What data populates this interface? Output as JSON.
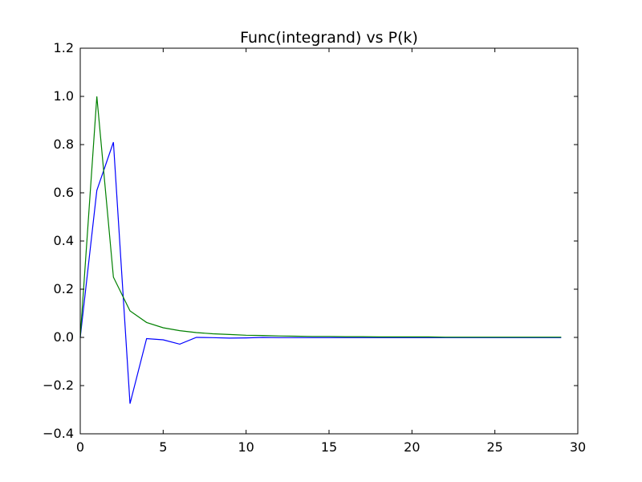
{
  "chart_data": {
    "type": "line",
    "title": "Func(integrand) vs P(k)",
    "xlabel": "",
    "ylabel": "",
    "xlim": [
      0,
      30
    ],
    "ylim": [
      -0.4,
      1.2
    ],
    "x_ticks": [
      0,
      5,
      10,
      15,
      20,
      25,
      30
    ],
    "x_tick_labels": [
      "0",
      "5",
      "10",
      "15",
      "20",
      "25",
      "30"
    ],
    "y_ticks": [
      -0.4,
      -0.2,
      0.0,
      0.2,
      0.4,
      0.6,
      0.8,
      1.0,
      1.2
    ],
    "y_tick_labels": [
      "−0.4",
      "−0.2",
      "0.0",
      "0.2",
      "0.4",
      "0.6",
      "0.8",
      "1.0",
      "1.2"
    ],
    "grid": false,
    "legend": "none",
    "series": [
      {
        "color": "#0000ff",
        "x": [
          0,
          1,
          2,
          3,
          4,
          5,
          6,
          7,
          8,
          9,
          10,
          11,
          12,
          13,
          14,
          15,
          16,
          17,
          18,
          19,
          20,
          21,
          22,
          23,
          24,
          25,
          26,
          27,
          28,
          29
        ],
        "values": [
          0.0,
          0.61,
          0.81,
          -0.275,
          -0.005,
          -0.01,
          -0.028,
          0.0,
          -0.001,
          -0.003,
          -0.002,
          0.0,
          -0.001,
          -0.001,
          -0.001,
          -0.001,
          -0.001,
          -0.001,
          -0.001,
          -0.001,
          -0.001,
          -0.001,
          -0.001,
          -0.001,
          -0.001,
          -0.001,
          -0.001,
          -0.001,
          -0.001,
          -0.001
        ]
      },
      {
        "color": "#008000",
        "x": [
          0,
          1,
          2,
          3,
          4,
          5,
          6,
          7,
          8,
          9,
          10,
          11,
          12,
          13,
          14,
          15,
          16,
          17,
          18,
          19,
          20,
          21,
          22,
          23,
          24,
          25,
          26,
          27,
          28,
          29
        ],
        "values": [
          0.0,
          1.0,
          0.25,
          0.11,
          0.062,
          0.04,
          0.028,
          0.02,
          0.015,
          0.012,
          0.009,
          0.008,
          0.006,
          0.005,
          0.004,
          0.004,
          0.003,
          0.003,
          0.002,
          0.002,
          0.002,
          0.002,
          0.001,
          0.001,
          0.001,
          0.001,
          0.001,
          0.001,
          0.001,
          0.001
        ]
      }
    ]
  }
}
